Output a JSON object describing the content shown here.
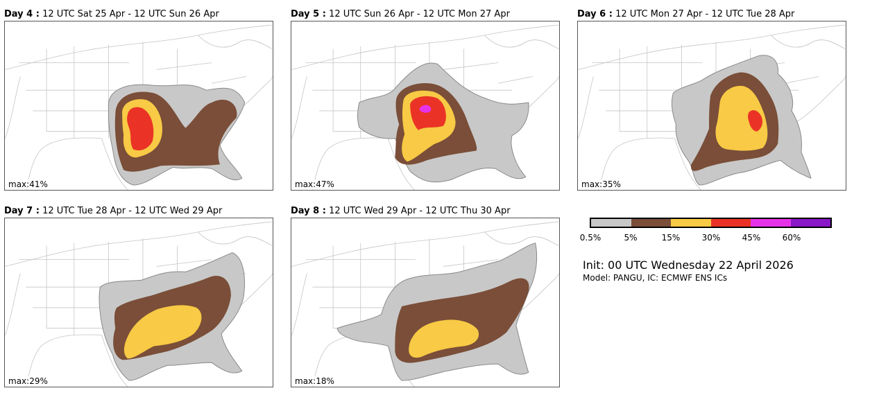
{
  "panels": [
    {
      "id": "d4",
      "day_label": "Day 4 :",
      "title": "12 UTC Sat 25 Apr - 12 UTC Sun 26 Apr",
      "max_label": "max:41%",
      "value_levels": [
        "0.5%",
        "5%",
        "15%",
        "30%"
      ]
    },
    {
      "id": "d5",
      "day_label": "Day 5 :",
      "title": "12 UTC Sun 26 Apr - 12 UTC Mon 27 Apr",
      "max_label": "max:47%",
      "value_levels": [
        "0.5%",
        "5%",
        "15%",
        "30%",
        "45%"
      ]
    },
    {
      "id": "d6",
      "day_label": "Day 6 :",
      "title": "12 UTC Mon 27 Apr - 12 UTC Tue 28 Apr",
      "max_label": "max:35%",
      "value_levels": [
        "0.5%",
        "5%",
        "15%",
        "30%"
      ]
    },
    {
      "id": "d7",
      "day_label": "Day 7 :",
      "title": "12 UTC Tue 28 Apr - 12 UTC Wed 29 Apr",
      "max_label": "max:29%",
      "value_levels": [
        "0.5%",
        "5%",
        "15%"
      ]
    },
    {
      "id": "d8",
      "day_label": "Day 8 :",
      "title": "12 UTC Wed 29 Apr - 12 UTC Thu 30 Apr",
      "max_label": "max:18%",
      "value_levels": [
        "0.5%",
        "5%",
        "15%"
      ]
    }
  ],
  "legend": {
    "colors": [
      "#c8c8c8",
      "#7a4e38",
      "#f8ca45",
      "#ea3326",
      "#e633ea",
      "#8818c8"
    ],
    "ticks": [
      "0.5%",
      "5%",
      "15%",
      "30%",
      "45%",
      "60%"
    ]
  },
  "init_text": "Init: 00 UTC Wednesday 22 April 2026",
  "model_text": "Model: PANGU, IC: ECMWF ENS ICs"
}
